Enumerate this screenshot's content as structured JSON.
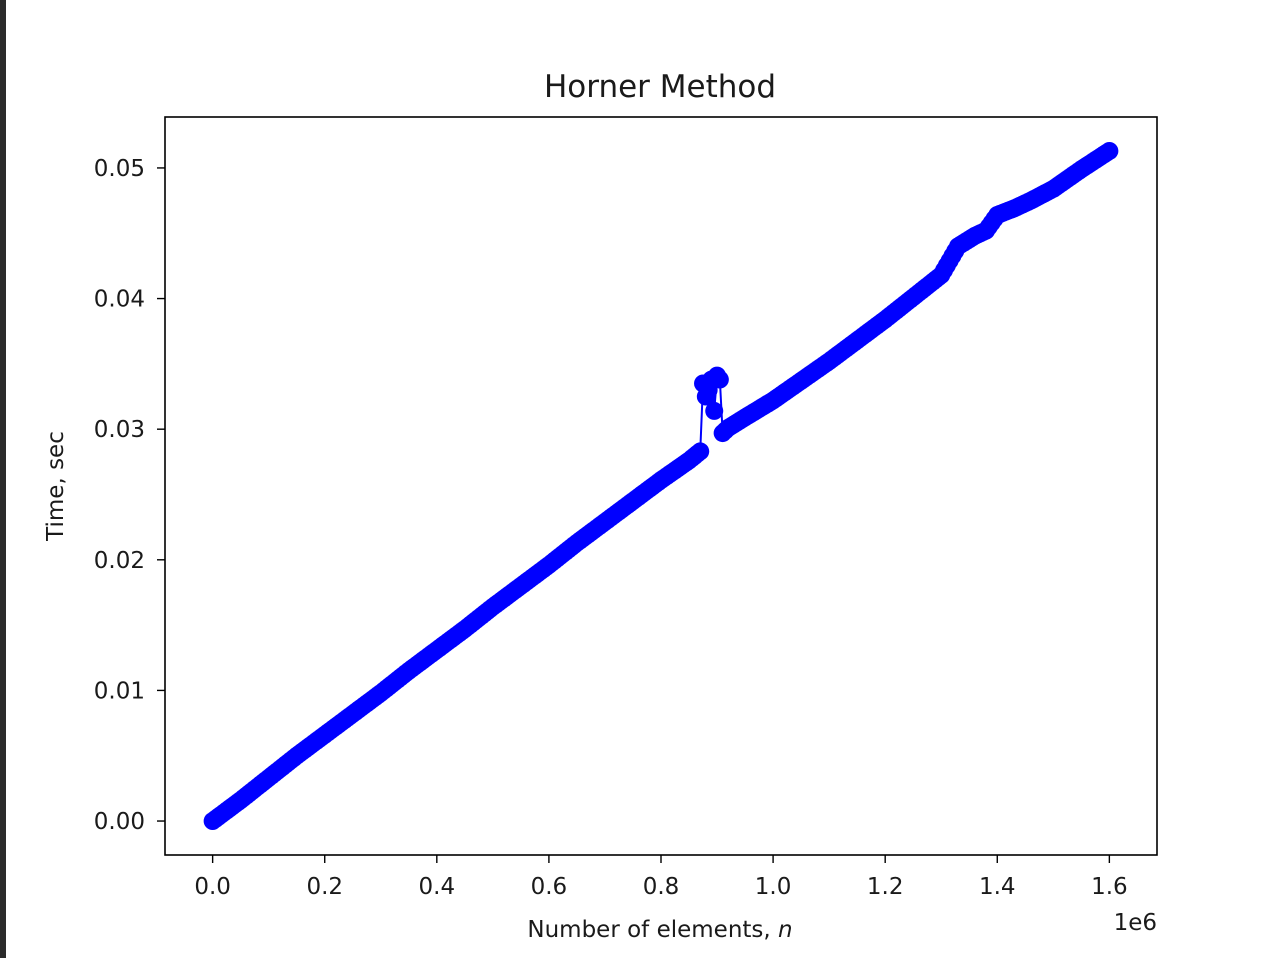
{
  "chart_data": {
    "type": "line",
    "title": "Horner Method",
    "xlabel_text": "Number of elements, ",
    "xlabel_var": "n",
    "ylabel": "Time, sec",
    "x_offset_label": "1e6",
    "xlim": [
      -0.085,
      1.685
    ],
    "ylim": [
      -0.0026,
      0.0539
    ],
    "x_ticks": [
      {
        "value": 0.0,
        "label": "0.0"
      },
      {
        "value": 0.2,
        "label": "0.2"
      },
      {
        "value": 0.4,
        "label": "0.4"
      },
      {
        "value": 0.6,
        "label": "0.6"
      },
      {
        "value": 0.8,
        "label": "0.8"
      },
      {
        "value": 1.0,
        "label": "1.0"
      },
      {
        "value": 1.2,
        "label": "1.2"
      },
      {
        "value": 1.4,
        "label": "1.4"
      },
      {
        "value": 1.6,
        "label": "1.6"
      }
    ],
    "y_ticks": [
      {
        "value": 0.0,
        "label": "0.00"
      },
      {
        "value": 0.01,
        "label": "0.01"
      },
      {
        "value": 0.02,
        "label": "0.02"
      },
      {
        "value": 0.03,
        "label": "0.03"
      },
      {
        "value": 0.04,
        "label": "0.04"
      },
      {
        "value": 0.05,
        "label": "0.05"
      }
    ],
    "grid": false,
    "series": [
      {
        "color": "#0000ff",
        "marker": "circle",
        "x": [
          0.0,
          0.05,
          0.1,
          0.15,
          0.2,
          0.25,
          0.3,
          0.35,
          0.4,
          0.45,
          0.5,
          0.55,
          0.6,
          0.65,
          0.7,
          0.75,
          0.8,
          0.85,
          0.87,
          0.875,
          0.88,
          0.885,
          0.89,
          0.895,
          0.9,
          0.905,
          0.91,
          0.92,
          0.95,
          1.0,
          1.05,
          1.1,
          1.15,
          1.2,
          1.25,
          1.3,
          1.33,
          1.36,
          1.38,
          1.4,
          1.43,
          1.46,
          1.5,
          1.55,
          1.6
        ],
        "y": [
          0.0,
          0.0016,
          0.0033,
          0.005,
          0.0066,
          0.0082,
          0.0098,
          0.0115,
          0.0131,
          0.0147,
          0.0164,
          0.018,
          0.0196,
          0.0213,
          0.0229,
          0.0245,
          0.0261,
          0.0276,
          0.0283,
          0.0335,
          0.0325,
          0.033,
          0.0338,
          0.0314,
          0.0341,
          0.0338,
          0.0297,
          0.0301,
          0.0309,
          0.0322,
          0.0337,
          0.0352,
          0.0368,
          0.0384,
          0.0401,
          0.0418,
          0.044,
          0.0448,
          0.0452,
          0.0464,
          0.0469,
          0.0475,
          0.0484,
          0.0499,
          0.0513
        ]
      }
    ]
  }
}
